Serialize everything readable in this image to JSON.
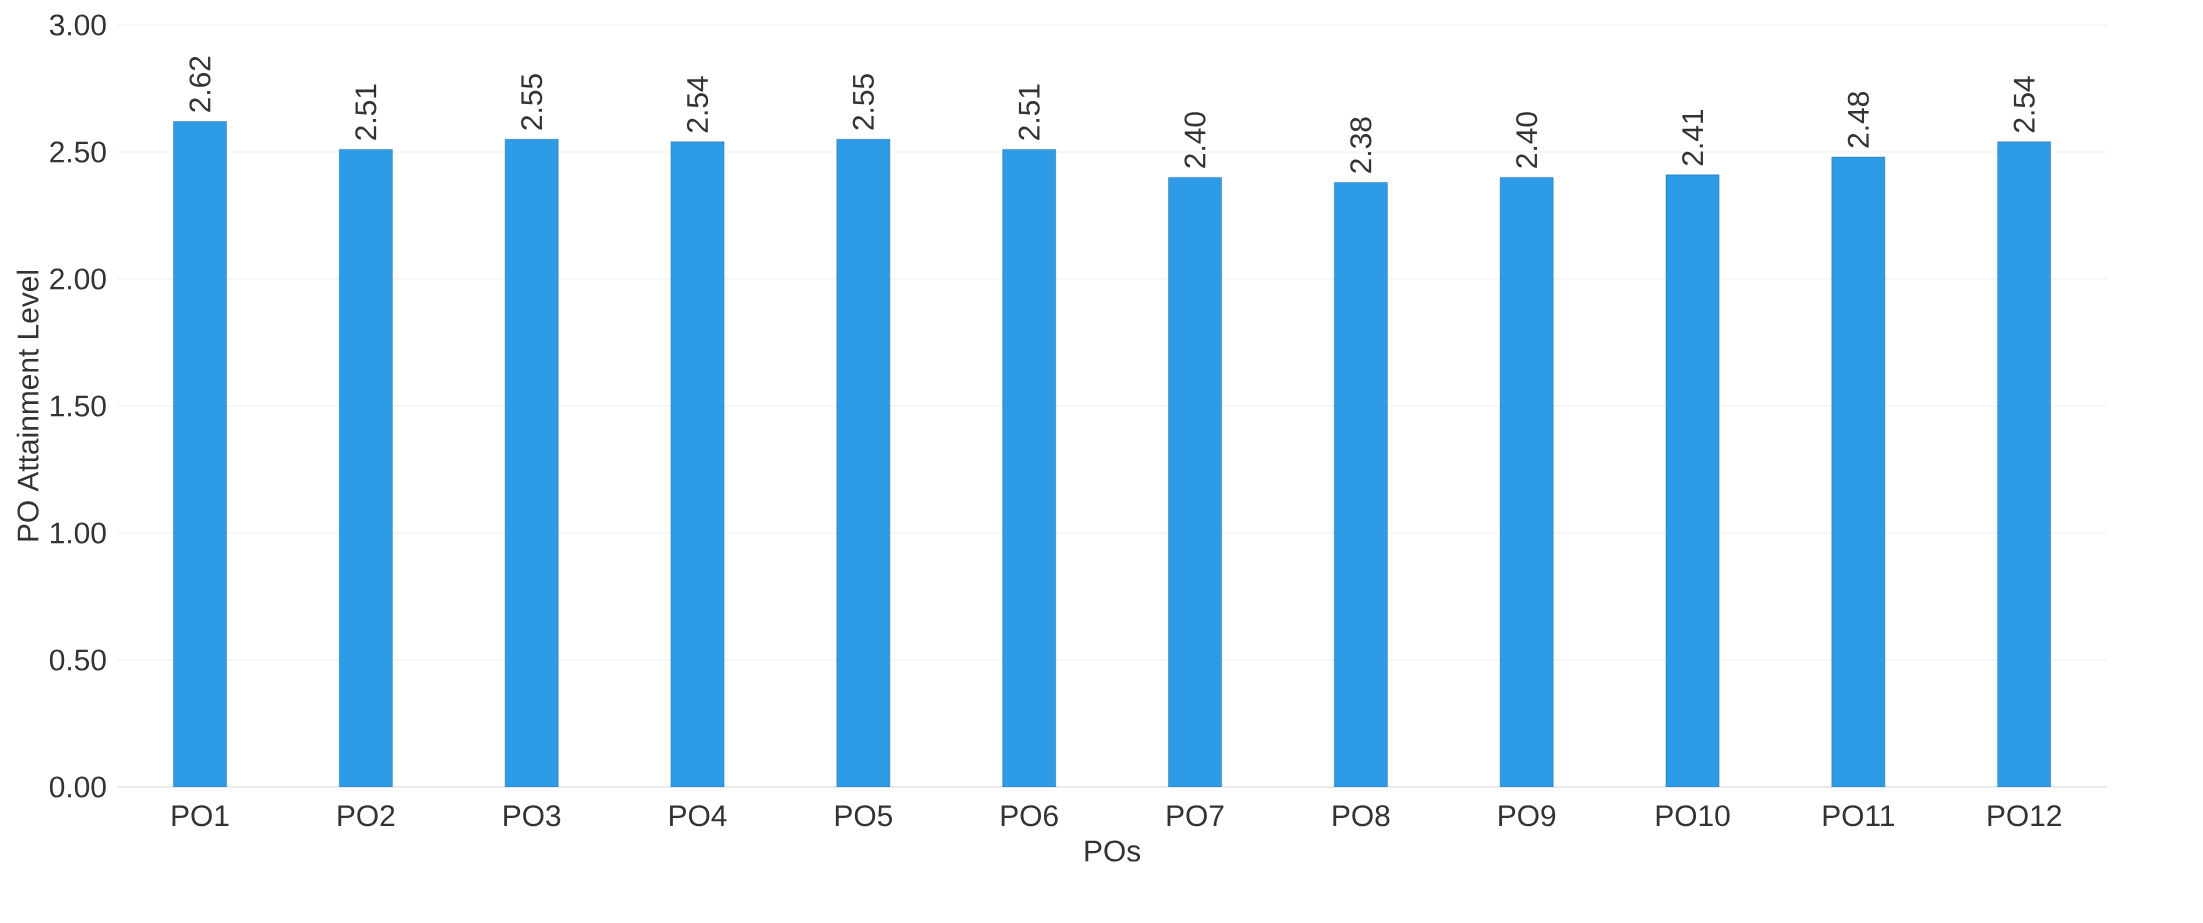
{
  "chart_data": {
    "type": "bar",
    "xlabel": "POs",
    "ylabel": "PO Attainment Level",
    "categories": [
      "PO1",
      "PO2",
      "PO3",
      "PO4",
      "PO5",
      "PO6",
      "PO7",
      "PO8",
      "PO9",
      "PO10",
      "PO11",
      "PO12"
    ],
    "values": [
      2.62,
      2.51,
      2.55,
      2.54,
      2.55,
      2.51,
      2.4,
      2.38,
      2.4,
      2.41,
      2.48,
      2.54
    ],
    "value_labels": [
      "2.62",
      "2.51",
      "2.55",
      "2.54",
      "2.55",
      "2.51",
      "2.40",
      "2.38",
      "2.40",
      "2.41",
      "2.48",
      "2.54"
    ],
    "color": "#2e9be6",
    "ylim": [
      0,
      3
    ],
    "yticks": [
      {
        "value": 0,
        "label": "0.00"
      },
      {
        "value": 0.5,
        "label": "0.50"
      },
      {
        "value": 1,
        "label": "1.00"
      },
      {
        "value": 1.5,
        "label": "1.50"
      },
      {
        "value": 2,
        "label": "2.00"
      },
      {
        "value": 2.5,
        "label": "2.50"
      },
      {
        "value": 3,
        "label": "3.00"
      }
    ],
    "grid": "y"
  }
}
